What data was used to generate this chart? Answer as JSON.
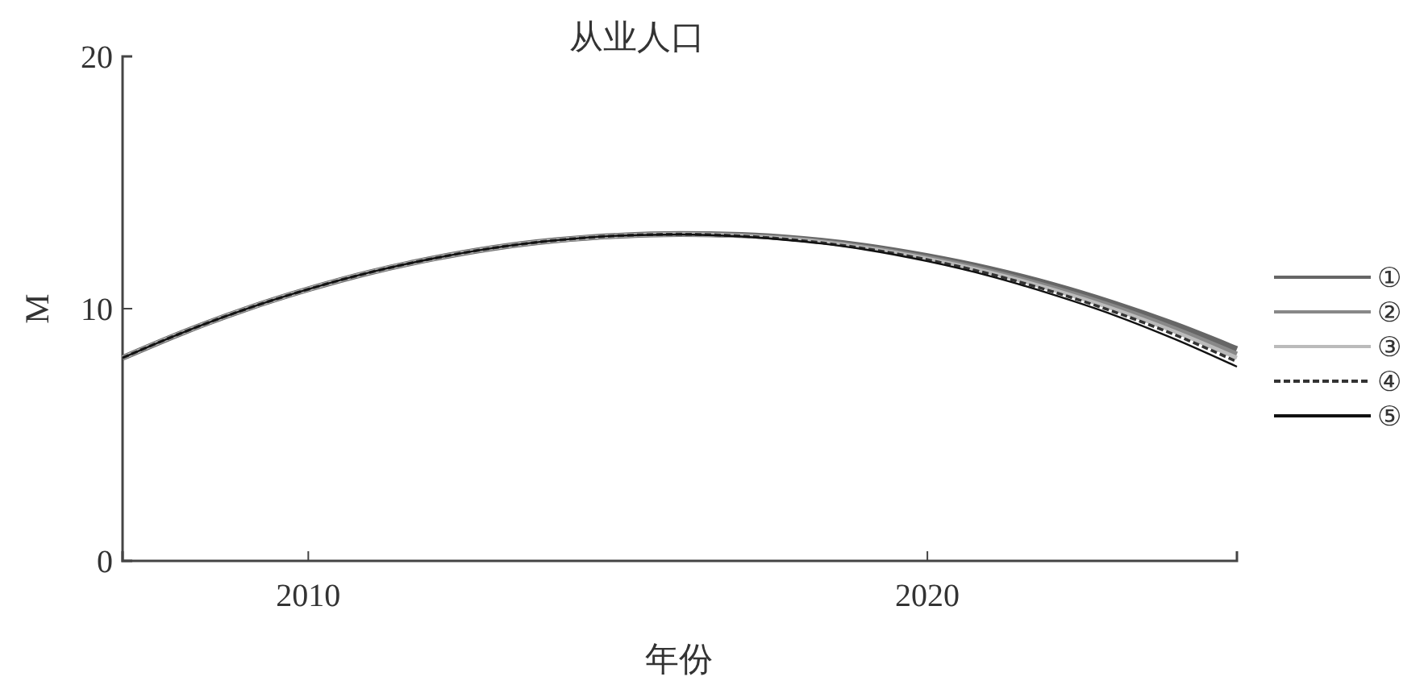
{
  "chart_data": {
    "type": "line",
    "title": "从业人口",
    "xlabel": "年份",
    "ylabel": "M",
    "x": [
      2007,
      2008,
      2009,
      2010,
      2011,
      2012,
      2013,
      2014,
      2015,
      2016,
      2017,
      2018,
      2019,
      2020,
      2021,
      2022,
      2023,
      2024,
      2025
    ],
    "xlim": [
      2007,
      2025
    ],
    "xticks": [
      2010,
      2020
    ],
    "ylim": [
      0,
      20
    ],
    "yticks": [
      0,
      10,
      20
    ],
    "grid": false,
    "legend": "right",
    "marker": "none",
    "series": [
      {
        "name": "①",
        "color": "#666666",
        "values": [
          8.05,
          9.08,
          9.99,
          10.77,
          11.44,
          11.98,
          12.41,
          12.71,
          12.89,
          12.96,
          12.92,
          12.76,
          12.48,
          12.08,
          11.58,
          10.96,
          10.22,
          9.37,
          8.4
        ]
      },
      {
        "name": "②",
        "color": "#888888",
        "values": [
          8.05,
          9.08,
          9.99,
          10.77,
          11.44,
          11.98,
          12.41,
          12.71,
          12.89,
          12.95,
          12.9,
          12.73,
          12.44,
          12.02,
          11.5,
          10.85,
          10.09,
          9.2,
          8.2
        ]
      },
      {
        "name": "③",
        "color": "#bbbbbb",
        "values": [
          8.05,
          9.08,
          9.99,
          10.77,
          11.44,
          11.98,
          12.41,
          12.71,
          12.89,
          12.95,
          12.89,
          12.71,
          12.41,
          11.98,
          11.44,
          10.77,
          9.99,
          9.08,
          8.05
        ]
      },
      {
        "name": "④",
        "color": "#333333",
        "line_style": "dashed",
        "values": [
          8.05,
          9.08,
          9.99,
          10.77,
          11.44,
          11.98,
          12.41,
          12.71,
          12.89,
          12.95,
          12.88,
          12.69,
          12.38,
          11.94,
          11.38,
          10.69,
          9.89,
          8.96,
          7.9
        ]
      },
      {
        "name": "⑤",
        "color": "#111111",
        "values": [
          8.05,
          9.08,
          9.99,
          10.77,
          11.44,
          11.98,
          12.41,
          12.71,
          12.89,
          12.94,
          12.86,
          12.66,
          12.34,
          11.88,
          11.3,
          10.58,
          9.76,
          8.79,
          7.7
        ]
      }
    ]
  }
}
